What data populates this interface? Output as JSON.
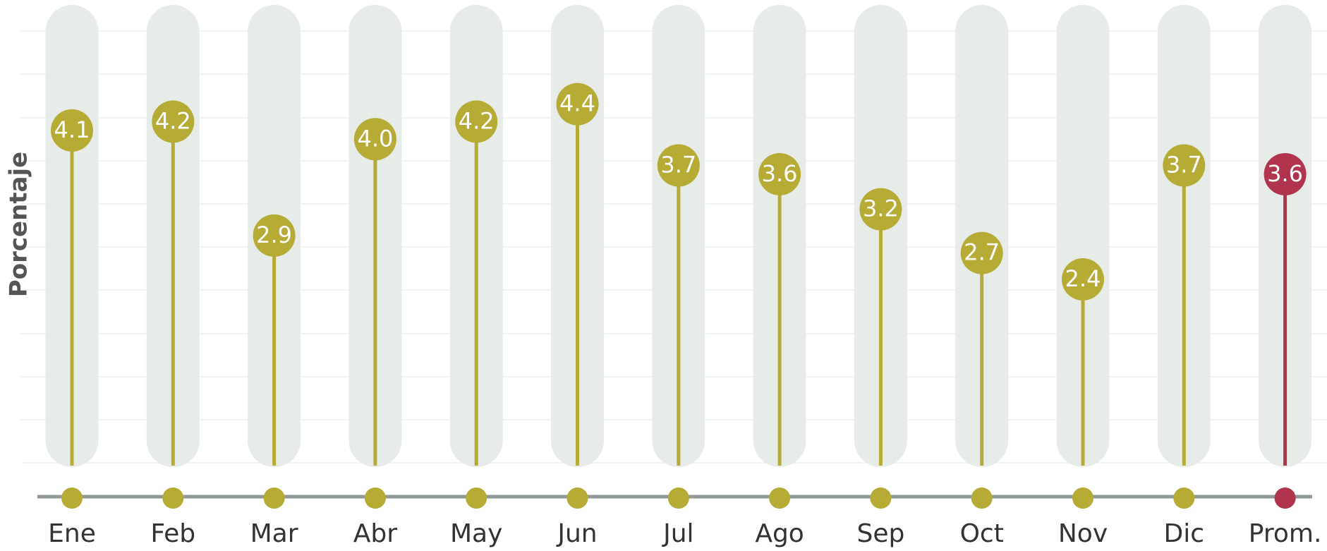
{
  "chart_data": {
    "type": "lollipop",
    "y_label": "Porcentaje",
    "categories": [
      "Ene",
      "Feb",
      "Mar",
      "Abr",
      "May",
      "Jun",
      "Jul",
      "Ago",
      "Sep",
      "Oct",
      "Nov",
      "Dic",
      "Prom."
    ],
    "values": [
      4.1,
      4.2,
      2.9,
      4.0,
      4.2,
      4.4,
      3.7,
      3.6,
      3.2,
      2.7,
      2.4,
      3.7,
      3.6
    ],
    "value_labels": [
      "4.1",
      "4.2",
      "2.9",
      "4.0",
      "4.2",
      "4.4",
      "3.7",
      "3.6",
      "3.2",
      "2.7",
      "2.4",
      "3.7",
      "3.6"
    ],
    "colors": [
      "#b5ab35",
      "#b5ab35",
      "#b5ab35",
      "#b5ab35",
      "#b5ab35",
      "#b5ab35",
      "#b5ab35",
      "#b5ab35",
      "#b5ab35",
      "#b5ab35",
      "#b5ab35",
      "#b5ab35",
      "#b0344d"
    ],
    "ylim": [
      0,
      5.5
    ]
  }
}
